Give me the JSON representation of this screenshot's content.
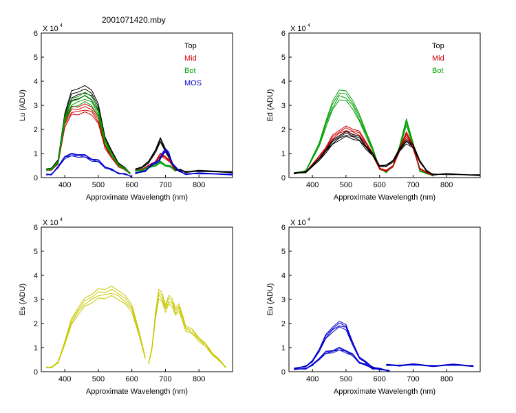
{
  "title": "2001071420.mby",
  "chart_data": [
    {
      "type": "line",
      "ylabel": "Lu (ADU)",
      "xlabel": "Approximate Wavelength (nm)",
      "exponent_label": "X 10",
      "exponent_power": "4",
      "xlim": [
        330,
        900
      ],
      "ylim": [
        0,
        60000
      ],
      "x_ticks": [
        400,
        500,
        600,
        700,
        800
      ],
      "y_ticks": [
        0,
        1,
        2,
        3,
        4,
        5,
        6
      ],
      "legend": [
        {
          "label": "Top",
          "color": "#000000"
        },
        {
          "label": "Mid",
          "color": "#cc0000"
        },
        {
          "label": "Bot",
          "color": "#00a000"
        },
        {
          "label": "MOS",
          "color": "#0000cc"
        }
      ],
      "series": [
        {
          "name": "Top",
          "color": "#000000",
          "segments": [
            {
              "x": [
                345,
                360,
                380,
                400,
                420,
                440,
                460,
                480,
                500,
                520,
                540,
                560,
                580,
                595
              ],
              "y": [
                3000,
                4000,
                6500,
                25000,
                33000,
                34500,
                35000,
                34000,
                28000,
                16000,
                10000,
                6000,
                3500,
                2000
              ]
            },
            {
              "x": [
                610,
                630,
                650,
                670,
                685,
                700,
                715,
                730,
                745,
                760,
                800,
                900
              ],
              "y": [
                3000,
                4500,
                6000,
                11000,
                15000,
                11500,
                7000,
                3500,
                2800,
                2600,
                2500,
                2500
              ]
            }
          ]
        },
        {
          "name": "Mid",
          "color": "#cc0000",
          "segments": [
            {
              "x": [
                345,
                360,
                380,
                400,
                420,
                440,
                460,
                480,
                500,
                520,
                540,
                560,
                580,
                595
              ],
              "y": [
                2800,
                3500,
                5500,
                22000,
                27000,
                27500,
                28000,
                27500,
                23000,
                13000,
                8000,
                5000,
                3000,
                1800
              ]
            },
            {
              "x": [
                610,
                630,
                650,
                670,
                685,
                700,
                715,
                730
              ],
              "y": [
                2500,
                3500,
                4500,
                6500,
                9000,
                8500,
                6000,
                3000
              ]
            }
          ]
        },
        {
          "name": "Bot",
          "color": "#00a000",
          "segments": [
            {
              "x": [
                345,
                360,
                380,
                400,
                420,
                440,
                460,
                480,
                500,
                520,
                540,
                560,
                580,
                595
              ],
              "y": [
                2800,
                3800,
                6000,
                24000,
                30000,
                31500,
                32500,
                31500,
                26000,
                15000,
                9000,
                5500,
                3200,
                1900
              ]
            },
            {
              "x": [
                610,
                630,
                650,
                670,
                685,
                700,
                715,
                730
              ],
              "y": [
                2500,
                3200,
                4000,
                5200,
                6000,
                5200,
                4200,
                3000
              ]
            }
          ]
        },
        {
          "name": "MOS",
          "color": "#0000cc",
          "segments": [
            {
              "x": [
                345,
                360,
                380,
                400,
                420,
                440,
                460,
                480,
                500,
                520,
                540,
                560,
                580,
                600
              ],
              "y": [
                1000,
                1500,
                4000,
                8500,
                9000,
                9200,
                8500,
                7500,
                6500,
                4500,
                3000,
                2000,
                1200,
                600
              ]
            },
            {
              "x": [
                610,
                640,
                660,
                680,
                690,
                700,
                710,
                720,
                740,
                760,
                800,
                900
              ],
              "y": [
                1500,
                3000,
                5000,
                7000,
                9000,
                11500,
                9500,
                6000,
                2500,
                1700,
                1500,
                1500
              ]
            }
          ]
        }
      ]
    },
    {
      "type": "line",
      "ylabel": "Ed  (ADU)",
      "xlabel": "Approximate Wavelength (nm)",
      "exponent_label": "X 10",
      "exponent_power": "4",
      "xlim": [
        330,
        900
      ],
      "ylim": [
        0,
        60000
      ],
      "x_ticks": [
        400,
        500,
        600,
        700,
        800
      ],
      "y_ticks": [
        0,
        1,
        2,
        3,
        4,
        5,
        6
      ],
      "legend": [
        {
          "label": "Top",
          "color": "#000000"
        },
        {
          "label": "Mid",
          "color": "#cc0000"
        },
        {
          "label": "Bot",
          "color": "#00a000"
        }
      ],
      "series": [
        {
          "name": "Bot",
          "color": "#00a000",
          "segments": [
            {
              "x": [
                345,
                380,
                420,
                440,
                460,
                480,
                500,
                520,
                540,
                560,
                580,
                600,
                620,
                640,
                660,
                680,
                700,
                720,
                740,
                760
              ],
              "y": [
                1500,
                3000,
                13000,
                22000,
                29000,
                34000,
                33000,
                30000,
                24000,
                18000,
                11000,
                4000,
                2000,
                5000,
                12000,
                23000,
                13000,
                3000,
                1500,
                1000
              ]
            }
          ]
        },
        {
          "name": "Mid",
          "color": "#cc0000",
          "segments": [
            {
              "x": [
                345,
                380,
                420,
                440,
                460,
                480,
                500,
                520,
                540,
                560,
                580,
                600,
                620,
                640,
                660,
                680,
                700,
                720,
                740,
                760
              ],
              "y": [
                1500,
                2500,
                8000,
                12000,
                16000,
                18500,
                19500,
                19000,
                17500,
                14000,
                9000,
                4000,
                2500,
                5000,
                11000,
                18000,
                12000,
                4000,
                1800,
                1200
              ]
            }
          ]
        },
        {
          "name": "Top",
          "color": "#000000",
          "segments": [
            {
              "x": [
                345,
                380,
                420,
                440,
                460,
                480,
                500,
                520,
                540,
                560,
                580,
                600,
                620,
                640,
                660,
                680,
                700,
                720,
                740,
                760,
                800,
                900
              ],
              "y": [
                1500,
                2500,
                7000,
                11000,
                14000,
                16500,
                17500,
                17000,
                15500,
                12500,
                9000,
                5000,
                4500,
                7000,
                11000,
                15000,
                12500,
                7000,
                2500,
                1500,
                1200,
                1200
              ]
            }
          ]
        }
      ]
    },
    {
      "type": "line",
      "ylabel": "Es  (ADU)",
      "xlabel": "Approximate Wavelength (nm)",
      "exponent_label": "X 10",
      "exponent_power": "4",
      "xlim": [
        330,
        900
      ],
      "ylim": [
        0,
        60000
      ],
      "x_ticks": [
        400,
        500,
        600,
        700,
        800
      ],
      "y_ticks": [
        0,
        1,
        2,
        3,
        4,
        5,
        6
      ],
      "legend": [],
      "series": [
        {
          "name": "",
          "color": "#c8c800",
          "segments": [
            {
              "x": [
                345,
                360,
                380,
                400,
                420,
                440,
                460,
                480,
                500,
                520,
                540,
                560,
                580,
                600,
                620,
                640
              ],
              "y": [
                1500,
                2000,
                3500,
                12000,
                20000,
                25000,
                28000,
                30000,
                31500,
                32000,
                32500,
                31500,
                29000,
                26000,
                16000,
                6000
              ]
            },
            {
              "x": [
                650,
                660,
                670,
                680,
                690,
                700,
                710,
                720,
                730,
                740,
                750,
                760,
                780,
                800,
                820,
                840,
                860,
                880
              ],
              "y": [
                3000,
                10000,
                22000,
                32000,
                30000,
                26000,
                29000,
                28500,
                24000,
                26500,
                22000,
                18000,
                16000,
                13500,
                10500,
                7500,
                4500,
                2000
              ]
            }
          ]
        }
      ]
    },
    {
      "type": "line",
      "ylabel": "Eu  (ADU)",
      "xlabel": "Approximate Wavelength (nm)",
      "exponent_label": "X 10",
      "exponent_power": "4",
      "xlim": [
        330,
        900
      ],
      "ylim": [
        0,
        60000
      ],
      "x_ticks": [
        400,
        500,
        600,
        700,
        800
      ],
      "y_ticks": [
        0,
        1,
        2,
        3,
        4,
        5,
        6
      ],
      "legend": [],
      "series": [
        {
          "name": "",
          "color": "#0000cc",
          "segments": [
            {
              "x": [
                345,
                380,
                400,
                420,
                440,
                460,
                480,
                500,
                520,
                540,
                560,
                580,
                600,
                630
              ],
              "y": [
                1000,
                2500,
                4000,
                9000,
                14000,
                17500,
                19000,
                18500,
                11000,
                6000,
                3500,
                2000,
                1000,
                600
              ]
            },
            {
              "x": [
                345,
                380,
                400,
                420,
                440,
                460,
                480,
                500,
                520,
                540,
                560,
                580,
                600,
                630
              ],
              "y": [
                800,
                1500,
                2500,
                5500,
                7500,
                8500,
                9000,
                8500,
                6500,
                4000,
                2500,
                1500,
                800,
                500
              ]
            },
            {
              "x": [
                620,
                660,
                700,
                760,
                820,
                880
              ],
              "y": [
                2500,
                2800,
                2700,
                2600,
                2600,
                2600
              ]
            }
          ]
        }
      ]
    }
  ]
}
